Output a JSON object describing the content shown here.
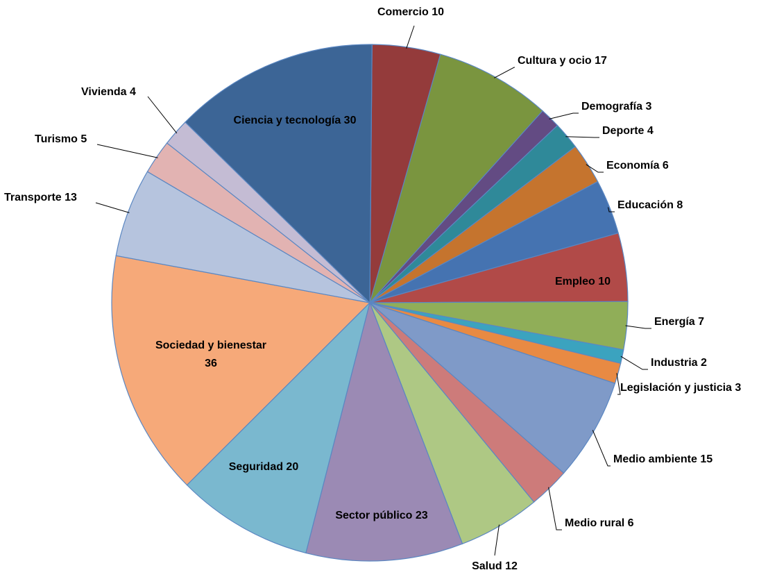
{
  "chart_data": {
    "type": "pie",
    "start_category": "Comercio",
    "direction": "clockwise",
    "slices": [
      {
        "label": "Comercio 10",
        "category": "Comercio",
        "value": 10,
        "color": "#943b3b"
      },
      {
        "label": "Cultura y ocio 17",
        "category": "Cultura y ocio",
        "value": 17,
        "color": "#7a953f"
      },
      {
        "label": "Demografía 3",
        "category": "Demografía",
        "value": 3,
        "color": "#634b83"
      },
      {
        "label": "Deporte 4",
        "category": "Deporte",
        "value": 4,
        "color": "#2f8999"
      },
      {
        "label": "Economía 6",
        "category": "Economía",
        "value": 6,
        "color": "#c5742e"
      },
      {
        "label": "Educación 8",
        "category": "Educación",
        "value": 8,
        "color": "#4573b1"
      },
      {
        "label": "Empleo 10",
        "category": "Empleo",
        "value": 10,
        "color": "#b14a48"
      },
      {
        "label": "Energía 7",
        "category": "Energía",
        "value": 7,
        "color": "#90ae58"
      },
      {
        "label": "Industria 2",
        "category": "Industria",
        "value": 2,
        "color": "#3ba3bf"
      },
      {
        "label": "Legislación y justicia 3",
        "category": "Legislación y justicia",
        "value": 3,
        "color": "#e88a43"
      },
      {
        "label": "Medio ambiente 15",
        "category": "Medio ambiente",
        "value": 15,
        "color": "#7f9ac8"
      },
      {
        "label": "Medio rural 6",
        "category": "Medio rural",
        "value": 6,
        "color": "#cd7b7a"
      },
      {
        "label": "Salud 12",
        "category": "Salud",
        "value": 12,
        "color": "#aec884"
      },
      {
        "label": "Sector público 23",
        "category": "Sector público",
        "value": 23,
        "color": "#9b8ab4"
      },
      {
        "label": "Seguridad 20",
        "category": "Seguridad",
        "value": 20,
        "color": "#7ab8cf"
      },
      {
        "label": "Sociedad y bienestar 36",
        "category": "Sociedad y bienestar",
        "value": 36,
        "color": "#f6a979"
      },
      {
        "label": "Transporte 13",
        "category": "Transporte",
        "value": 13,
        "color": "#b6c4de"
      },
      {
        "label": "Turismo 5",
        "category": "Turismo",
        "value": 5,
        "color": "#e2b3b2"
      },
      {
        "label": "Vivienda 4",
        "category": "Vivienda",
        "value": 4,
        "color": "#c4bcd4"
      },
      {
        "label": "Ciencia y tecnología 30",
        "category": "Ciencia y tecnología",
        "value": 30,
        "color": "#3c6596"
      }
    ]
  }
}
